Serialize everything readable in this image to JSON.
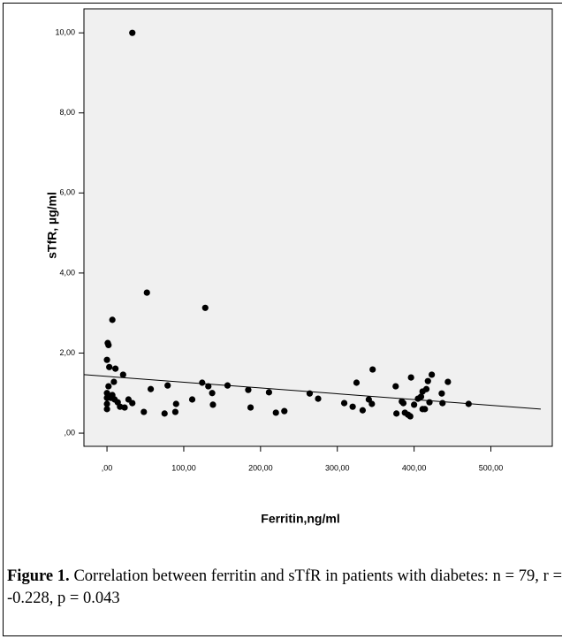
{
  "chart_data": {
    "type": "scatter",
    "xlabel": "Ferritin,ng/ml",
    "ylabel": "sTfR, µg/ml",
    "color": "#000000",
    "background": "#f0f0f0",
    "x": [
      33,
      52,
      128,
      7,
      1,
      2,
      0,
      3,
      11,
      21,
      9,
      2,
      0,
      0,
      0,
      0,
      5,
      7,
      10,
      14,
      17,
      23,
      28,
      33,
      48,
      57,
      79,
      75,
      90,
      89,
      111,
      124,
      132,
      137,
      138,
      157,
      184,
      187,
      211,
      220,
      231,
      264,
      275,
      309,
      320,
      325,
      333,
      341,
      345,
      346,
      376,
      377,
      384,
      386,
      388,
      392,
      395,
      396,
      400,
      405,
      409,
      411,
      414,
      411,
      416,
      418,
      423,
      420,
      436,
      437,
      444,
      471
    ],
    "y": [
      10.0,
      3.51,
      3.13,
      2.83,
      2.25,
      2.2,
      1.83,
      1.65,
      1.61,
      1.46,
      1.28,
      1.17,
      1.0,
      0.88,
      0.73,
      0.6,
      0.88,
      0.95,
      0.84,
      0.77,
      0.66,
      0.64,
      0.84,
      0.75,
      0.53,
      1.1,
      1.19,
      0.49,
      0.73,
      0.53,
      0.84,
      1.26,
      1.17,
      1.0,
      0.71,
      1.19,
      1.08,
      0.64,
      1.02,
      0.51,
      0.55,
      0.99,
      0.86,
      0.75,
      0.66,
      1.26,
      0.57,
      0.84,
      0.73,
      1.59,
      1.17,
      0.49,
      0.79,
      0.75,
      0.51,
      0.46,
      0.42,
      1.39,
      0.71,
      0.86,
      0.91,
      0.6,
      0.6,
      1.04,
      1.1,
      1.3,
      1.46,
      0.77,
      0.99,
      0.75,
      1.28,
      0.73
    ],
    "fit_line": {
      "x": [
        -30,
        565
      ],
      "y": [
        1.46,
        0.6
      ]
    },
    "xlim": [
      -30,
      565
    ],
    "ylim": [
      -0.33,
      10.6
    ],
    "xticks": [
      {
        "value": 0,
        "label": ",00"
      },
      {
        "value": 100,
        "label": "100,00"
      },
      {
        "value": 200,
        "label": "200,00"
      },
      {
        "value": 300,
        "label": "300,00"
      },
      {
        "value": 400,
        "label": "400,00"
      },
      {
        "value": 500,
        "label": "500,00"
      }
    ],
    "yticks": [
      {
        "value": 0,
        "label": ",00"
      },
      {
        "value": 2,
        "label": "2,00"
      },
      {
        "value": 4,
        "label": "4,00"
      },
      {
        "value": 6,
        "label": "6,00"
      },
      {
        "value": 8,
        "label": "8,00"
      },
      {
        "value": 10,
        "label": "10,00"
      }
    ]
  },
  "caption": {
    "label": "Figure 1.",
    "text": "Correlation between ferritin and sTfR in patients with diabetes: n = 79, r = -0.228, p = 0.043"
  }
}
